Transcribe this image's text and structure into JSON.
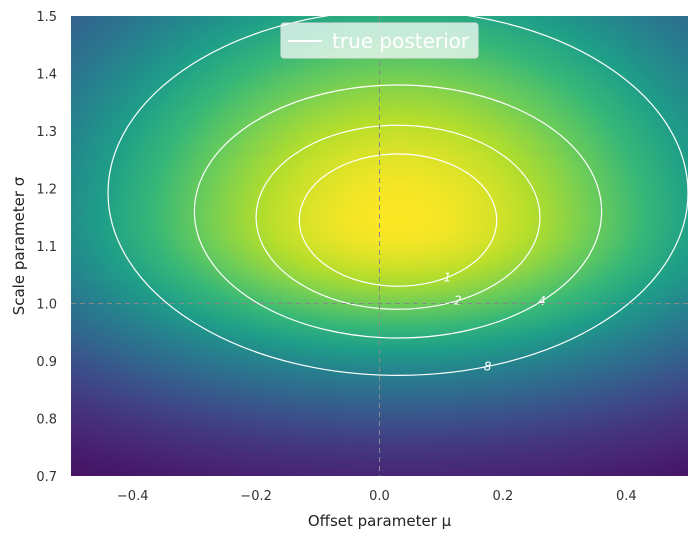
{
  "chart_data": {
    "type": "heatmap",
    "xlabel": "Offset parameter μ",
    "ylabel": "Scale parameter σ",
    "xlim": [
      -0.5,
      0.5
    ],
    "ylim": [
      0.7,
      1.5
    ],
    "xticks": [
      -0.4,
      -0.2,
      0.0,
      0.2,
      0.4
    ],
    "xtick_labels": [
      "−0.4",
      "−0.2",
      "0.0",
      "0.2",
      "0.4"
    ],
    "yticks": [
      0.7,
      0.8,
      0.9,
      1.0,
      1.1,
      1.2,
      1.3,
      1.4,
      1.5
    ],
    "ytick_labels": [
      "0.7",
      "0.8",
      "0.9",
      "1.0",
      "1.1",
      "1.2",
      "1.3",
      "1.4",
      "1.5"
    ],
    "colormap": "viridis",
    "posterior_peak": {
      "mu": 0.03,
      "sigma": 1.145
    },
    "reference_lines": {
      "mu": 0.0,
      "sigma": 1.0,
      "style": "dashed",
      "color": "#888888"
    },
    "contour_color": "#ffffff",
    "contour_levels": [
      {
        "level": 1,
        "label": "1",
        "mu_range": [
          -0.13,
          0.19
        ],
        "sigma_range": [
          1.03,
          1.26
        ]
      },
      {
        "level": 2,
        "label": "2",
        "mu_range": [
          -0.2,
          0.26
        ],
        "sigma_range": [
          0.99,
          1.31
        ]
      },
      {
        "level": 4,
        "label": "4",
        "mu_range": [
          -0.3,
          0.36
        ],
        "sigma_range": [
          0.94,
          1.38
        ]
      },
      {
        "level": 8,
        "label": "8",
        "mu_range": [
          -0.44,
          0.5
        ],
        "sigma_range": [
          0.875,
          1.51
        ]
      }
    ],
    "legend": {
      "entries": [
        "true posterior"
      ],
      "placement": "top-center"
    },
    "grid": false
  }
}
